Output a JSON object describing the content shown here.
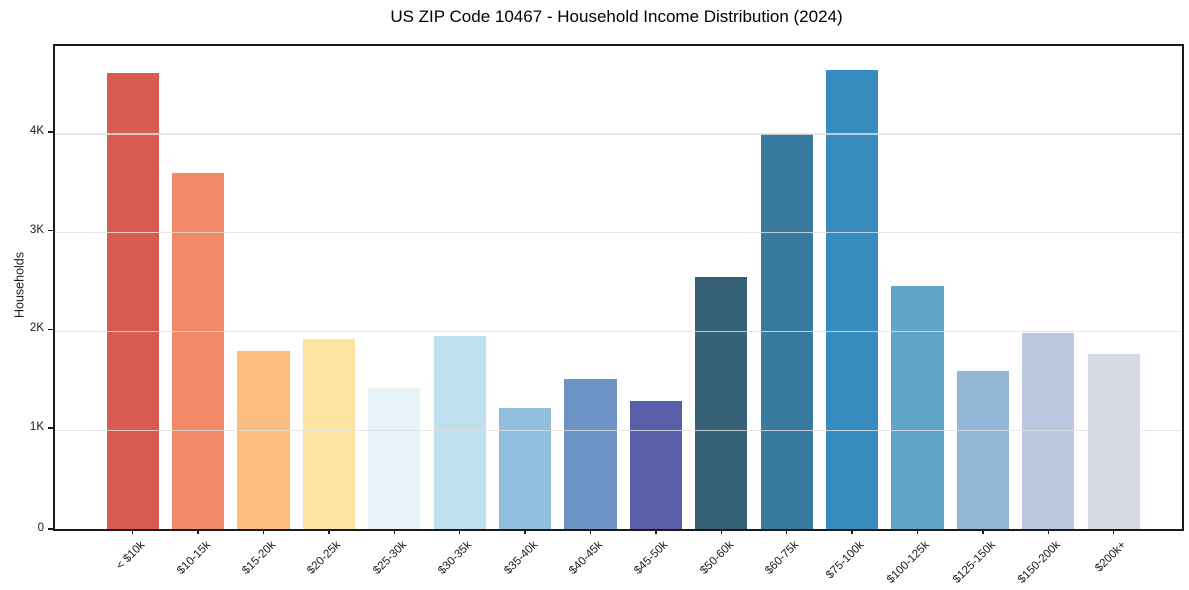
{
  "page": {
    "background": "#ffffff"
  },
  "chart_data": {
    "type": "bar",
    "title": "US ZIP Code 10467 - Household Income Distribution (2024)",
    "xlabel": "",
    "ylabel": "Households",
    "categories": [
      "< $10k",
      "$10-15k",
      "$15-20k",
      "$20-25k",
      "$25-30k",
      "$30-35k",
      "$35-40k",
      "$40-45k",
      "$45-50k",
      "$50-60k",
      "$60-75k",
      "$75-100k",
      "$100-125k",
      "$125-150k",
      "$150-200k",
      "$200k+"
    ],
    "values": [
      4620,
      3600,
      1800,
      1920,
      1430,
      1950,
      1230,
      1520,
      1300,
      2550,
      4000,
      4650,
      2460,
      1600,
      1980,
      1770
    ],
    "bar_colors": [
      "#d95a51",
      "#f28a68",
      "#fabd7d",
      "#fde3a1",
      "#e7f3f8",
      "#bde0ec",
      "#92bedd",
      "#6c93c4",
      "#5b5fa9",
      "#366076",
      "#38799f",
      "#378bbf",
      "#60a5ca",
      "#92b6d5",
      "#bac9df",
      "#d7d9e5"
    ],
    "ylim": [
      0,
      4890
    ],
    "yticks": [
      {
        "value": 0,
        "label": "0"
      },
      {
        "value": 1000,
        "label": "1K"
      },
      {
        "value": 2000,
        "label": "2K"
      },
      {
        "value": 3000,
        "label": "3K"
      },
      {
        "value": 4000,
        "label": "4K"
      }
    ],
    "grid": "horizontal-over-bars",
    "grid_color": "#e8e8e8",
    "spine_color": "#1a1a1a",
    "text_color": "#1a1a1a",
    "legend": "none"
  }
}
